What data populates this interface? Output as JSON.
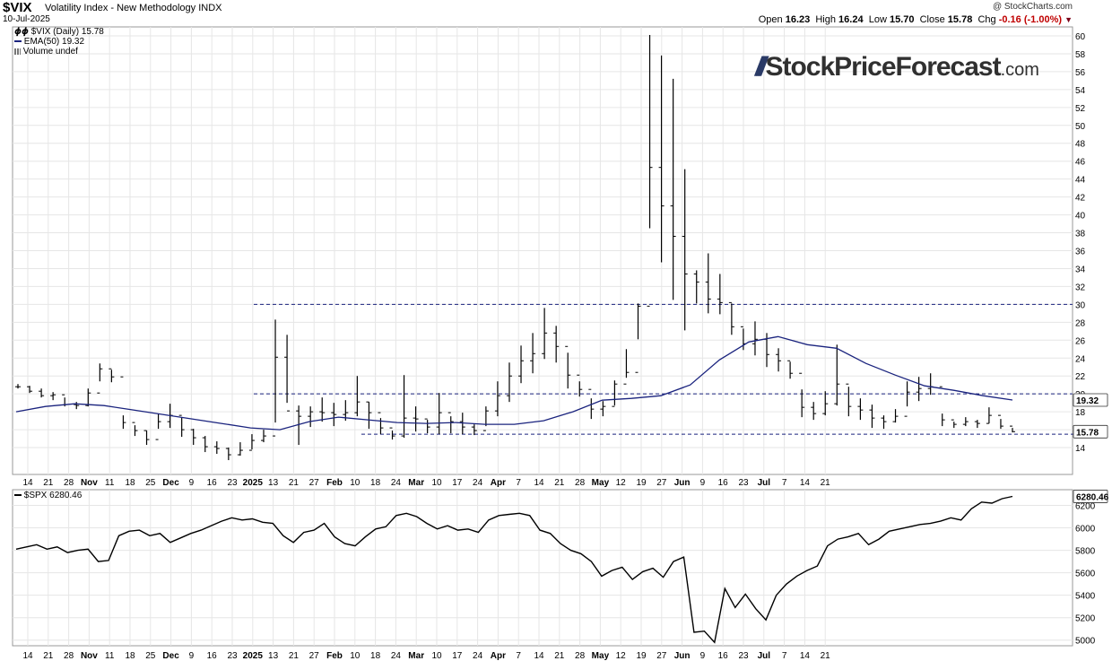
{
  "header": {
    "symbol": "$VIX",
    "description": "Volatility Index - New Methodology  INDX",
    "date": "10-Jul-2025",
    "copyright": "@ StockCharts.com",
    "open_label": "Open",
    "open": "16.23",
    "high_label": "High",
    "high": "16.24",
    "low_label": "Low",
    "low": "15.70",
    "close_label": "Close",
    "close": "15.78",
    "chg_label": "Chg",
    "chg": "-0.16 (-1.00%)"
  },
  "legend": {
    "vix": "$VIX (Daily) 15.78",
    "ema": "EMA(50) 19.32",
    "volume": "Volume undef",
    "spx": "$SPX 6280.46"
  },
  "watermark": {
    "name": "StockPriceForecast",
    "domain": ".com"
  },
  "colors": {
    "ema": "#1a237e",
    "dashed": "#1a237e",
    "bars": "#000000",
    "grid": "#e6e6e6",
    "spx_line": "#000000"
  },
  "chart_data": [
    {
      "type": "ohlc",
      "name": "$VIX (Daily)",
      "ylim": [
        11,
        61
      ],
      "y_ticks": [
        14,
        16,
        18,
        20,
        22,
        24,
        26,
        28,
        30,
        32,
        34,
        36,
        38,
        40,
        42,
        44,
        46,
        48,
        50,
        52,
        54,
        56,
        58,
        60
      ],
      "price_badges": [
        "19.32",
        "15.78"
      ],
      "x_ticks": [
        "14",
        "21",
        "28",
        "Nov",
        "11",
        "18",
        "25",
        "Dec",
        "9",
        "16",
        "23",
        "2025",
        "13",
        "21",
        "27",
        "Feb",
        "10",
        "18",
        "24",
        "Mar",
        "10",
        "17",
        "24",
        "Apr",
        "7",
        "14",
        "21",
        "28",
        "May",
        "12",
        "19",
        "27",
        "Jun",
        "9",
        "16",
        "23",
        "Jul",
        "7",
        "14",
        "21"
      ],
      "horizontal_lines": [
        30,
        20,
        15.5
      ],
      "ema50": [
        18.0,
        18.6,
        18.9,
        18.7,
        18.2,
        17.7,
        17.2,
        16.7,
        16.2,
        16.0,
        16.9,
        17.4,
        17.1,
        16.8,
        16.7,
        16.8,
        16.6,
        16.6,
        17.0,
        18.0,
        19.3,
        19.5,
        19.8,
        21.0,
        23.8,
        25.8,
        26.4,
        25.5,
        25.1,
        23.4,
        22.1,
        20.9,
        20.4,
        19.8,
        19.32
      ],
      "ohlc": [
        [
          21.1,
          20.6,
          20.8
        ],
        [
          20.9,
          20.1,
          20.3
        ],
        [
          20.6,
          19.6,
          19.8
        ],
        [
          20.2,
          19.3,
          19.9
        ],
        [
          19.6,
          18.6,
          18.8
        ],
        [
          19.1,
          18.3,
          18.7
        ],
        [
          20.6,
          18.6,
          20.1
        ],
        [
          23.4,
          21.4,
          22.8
        ],
        [
          22.7,
          21.3,
          21.9
        ],
        [
          17.6,
          16.1,
          16.8
        ],
        [
          16.5,
          15.3,
          15.9
        ],
        [
          15.9,
          14.3,
          14.9
        ],
        [
          17.8,
          16.1,
          16.9
        ],
        [
          18.9,
          16.2,
          17.6
        ],
        [
          17.4,
          15.2,
          16.0
        ],
        [
          16.1,
          14.3,
          15.1
        ],
        [
          15.3,
          13.5,
          14.1
        ],
        [
          14.7,
          13.3,
          13.9
        ],
        [
          14.0,
          12.6,
          13.2
        ],
        [
          14.6,
          13.1,
          13.7
        ],
        [
          15.5,
          13.8,
          14.8
        ],
        [
          16.0,
          14.6,
          15.3
        ],
        [
          28.3,
          16.8,
          24.1
        ],
        [
          26.6,
          19.0,
          18.1
        ],
        [
          18.7,
          14.3,
          17.5
        ],
        [
          18.6,
          16.3,
          18.0
        ],
        [
          19.6,
          16.9,
          17.9
        ],
        [
          19.0,
          16.4,
          17.7
        ],
        [
          19.3,
          17.0,
          17.9
        ],
        [
          22.0,
          17.5,
          19.1
        ],
        [
          19.1,
          16.1,
          17.9
        ],
        [
          17.3,
          15.5,
          16.2
        ],
        [
          15.9,
          14.9,
          15.3
        ],
        [
          22.1,
          15.1,
          17.3
        ],
        [
          18.6,
          15.8,
          17.2
        ],
        [
          17.1,
          15.6,
          16.3
        ],
        [
          20.1,
          15.5,
          17.9
        ],
        [
          17.5,
          15.6,
          16.9
        ],
        [
          17.9,
          15.5,
          16.3
        ],
        [
          16.6,
          15.4,
          15.9
        ],
        [
          18.6,
          16.4,
          18.1
        ],
        [
          21.4,
          17.5,
          19.8
        ],
        [
          23.5,
          19.1,
          22.0
        ],
        [
          25.4,
          21.2,
          23.7
        ],
        [
          26.8,
          22.3,
          24.5
        ],
        [
          29.6,
          23.9,
          26.8
        ],
        [
          27.6,
          23.5,
          25.3
        ],
        [
          24.6,
          20.6,
          22.1
        ],
        [
          21.4,
          19.7,
          20.5
        ],
        [
          19.5,
          17.2,
          18.3
        ],
        [
          19.2,
          17.5,
          18.6
        ],
        [
          21.5,
          18.7,
          21.1
        ],
        [
          25.0,
          21.8,
          22.4
        ],
        [
          30.1,
          26.1,
          29.8
        ],
        [
          60.1,
          38.5,
          45.3
        ],
        [
          57.8,
          34.7,
          41.0
        ],
        [
          55.2,
          30.5,
          37.6
        ],
        [
          45.1,
          27.1,
          33.4
        ],
        [
          33.8,
          30.1,
          32.5
        ],
        [
          35.7,
          29.0,
          30.6
        ],
        [
          33.4,
          28.9,
          30.2
        ],
        [
          30.1,
          26.6,
          27.5
        ],
        [
          27.3,
          24.9,
          25.6
        ],
        [
          28.1,
          24.3,
          26.1
        ],
        [
          26.8,
          23.0,
          24.4
        ],
        [
          25.1,
          22.5,
          23.7
        ],
        [
          23.6,
          21.7,
          22.3
        ],
        [
          20.5,
          17.4,
          18.5
        ],
        [
          19.1,
          17.1,
          17.8
        ],
        [
          20.3,
          17.6,
          18.9
        ],
        [
          25.5,
          18.7,
          21.1
        ],
        [
          20.8,
          17.5,
          18.6
        ],
        [
          19.5,
          17.1,
          18.2
        ],
        [
          18.8,
          16.2,
          17.3
        ],
        [
          17.6,
          16.1,
          16.9
        ],
        [
          18.3,
          16.8,
          17.5
        ],
        [
          21.4,
          18.6,
          20.2
        ],
        [
          21.9,
          19.2,
          20.6
        ],
        [
          22.3,
          19.9,
          20.8
        ],
        [
          17.8,
          16.4,
          17.1
        ],
        [
          16.9,
          16.2,
          16.6
        ],
        [
          17.4,
          16.4,
          16.9
        ],
        [
          17.1,
          16.2,
          16.7
        ],
        [
          18.5,
          16.7,
          17.6
        ],
        [
          17.2,
          16.1,
          16.4
        ],
        [
          16.2,
          15.7,
          15.78
        ]
      ]
    },
    {
      "type": "line",
      "name": "$SPX",
      "ylim": [
        4950,
        6340
      ],
      "y_ticks": [
        5000,
        5200,
        5400,
        5600,
        5800,
        6000,
        6200
      ],
      "price_badge": "6280.46",
      "x_ticks": [
        "14",
        "21",
        "28",
        "Nov",
        "11",
        "18",
        "25",
        "Dec",
        "9",
        "16",
        "23",
        "2025",
        "13",
        "21",
        "27",
        "Feb",
        "10",
        "18",
        "24",
        "Mar",
        "10",
        "17",
        "24",
        "Apr",
        "7",
        "14",
        "21",
        "28",
        "May",
        "12",
        "19",
        "27",
        "Jun",
        "9",
        "16",
        "23",
        "Jul",
        "7",
        "14",
        "21"
      ],
      "values": [
        5810,
        5830,
        5850,
        5810,
        5830,
        5780,
        5800,
        5810,
        5700,
        5710,
        5930,
        5970,
        5980,
        5930,
        5950,
        5870,
        5910,
        5950,
        5980,
        6020,
        6060,
        6090,
        6070,
        6080,
        6050,
        6040,
        5930,
        5870,
        5960,
        5980,
        6040,
        5920,
        5860,
        5840,
        5920,
        5990,
        6010,
        6110,
        6130,
        6100,
        6040,
        5990,
        6020,
        5980,
        5990,
        5960,
        6070,
        6110,
        6120,
        6130,
        6110,
        5980,
        5950,
        5860,
        5800,
        5770,
        5700,
        5570,
        5620,
        5650,
        5540,
        5610,
        5640,
        5560,
        5700,
        5740,
        5070,
        5080,
        4980,
        5460,
        5290,
        5410,
        5280,
        5180,
        5400,
        5500,
        5570,
        5620,
        5660,
        5840,
        5900,
        5920,
        5950,
        5850,
        5900,
        5970,
        5990,
        6010,
        6030,
        6040,
        6060,
        6090,
        6070,
        6170,
        6230,
        6220,
        6260,
        6280
      ]
    }
  ]
}
